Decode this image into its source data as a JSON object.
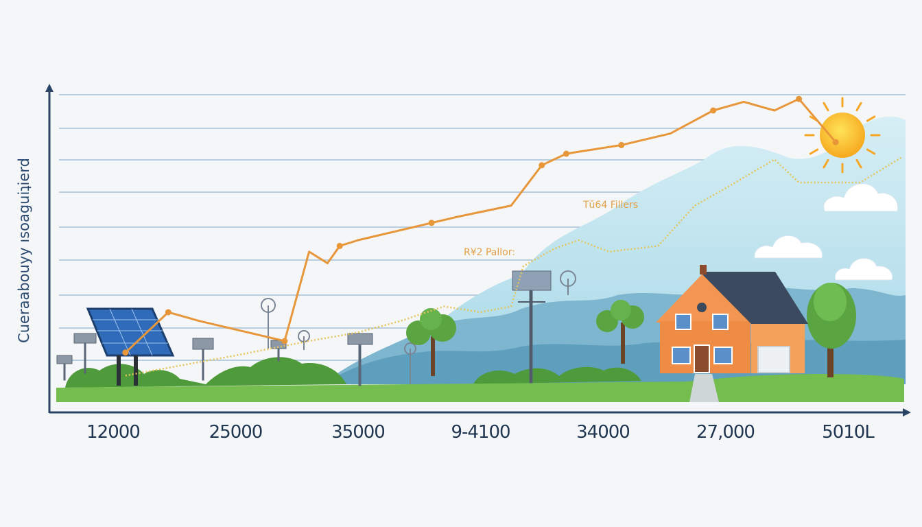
{
  "chart_data": {
    "type": "line",
    "ylabel": "Cueraabouyy ısoaguiʇierd",
    "categories": [
      "12000",
      "25000",
      "35000",
      "9-4100",
      "34000",
      "27,000",
      "5010L"
    ],
    "grid": true,
    "legend": "none",
    "series": [
      {
        "name": "R¥2 Pallor:",
        "color": "#e8963a",
        "style": "solid",
        "points": [
          [
            1.1,
            0.11
          ],
          [
            1.45,
            0.25
          ],
          [
            1.7,
            0.22
          ],
          [
            2.1,
            0.18
          ],
          [
            2.4,
            0.15
          ],
          [
            2.6,
            0.46
          ],
          [
            2.75,
            0.42
          ],
          [
            2.85,
            0.48
          ],
          [
            3.0,
            0.5
          ],
          [
            3.6,
            0.56
          ],
          [
            3.8,
            0.58
          ],
          [
            4.25,
            0.62
          ],
          [
            4.5,
            0.76
          ],
          [
            4.7,
            0.8
          ],
          [
            5.15,
            0.83
          ],
          [
            5.55,
            0.87
          ],
          [
            5.9,
            0.95
          ],
          [
            6.15,
            0.98
          ],
          [
            6.4,
            0.95
          ],
          [
            6.6,
            0.99
          ],
          [
            6.9,
            0.84
          ]
        ]
      },
      {
        "name": "Tŭ64 Fillers",
        "color": "#e5c45a",
        "style": "dotted",
        "points": [
          [
            1.1,
            0.03
          ],
          [
            2.0,
            0.1
          ],
          [
            2.6,
            0.15
          ],
          [
            3.0,
            0.18
          ],
          [
            3.35,
            0.22
          ],
          [
            3.7,
            0.27
          ],
          [
            4.0,
            0.25
          ],
          [
            4.25,
            0.27
          ],
          [
            4.35,
            0.41
          ],
          [
            4.6,
            0.47
          ],
          [
            4.8,
            0.5
          ],
          [
            5.05,
            0.46
          ],
          [
            5.45,
            0.48
          ],
          [
            5.75,
            0.62
          ],
          [
            6.0,
            0.68
          ],
          [
            6.4,
            0.78
          ],
          [
            6.6,
            0.7
          ],
          [
            7.1,
            0.7
          ],
          [
            7.45,
            0.79
          ]
        ]
      }
    ]
  },
  "colors": {
    "axis": "#2a4466",
    "grid": "#b9cde0",
    "grass": "#74bd4e",
    "sun": "#f5a623",
    "house_wall": "#ee8b44",
    "roof": "#3b4a5e",
    "sky": "#bfe3ee"
  }
}
